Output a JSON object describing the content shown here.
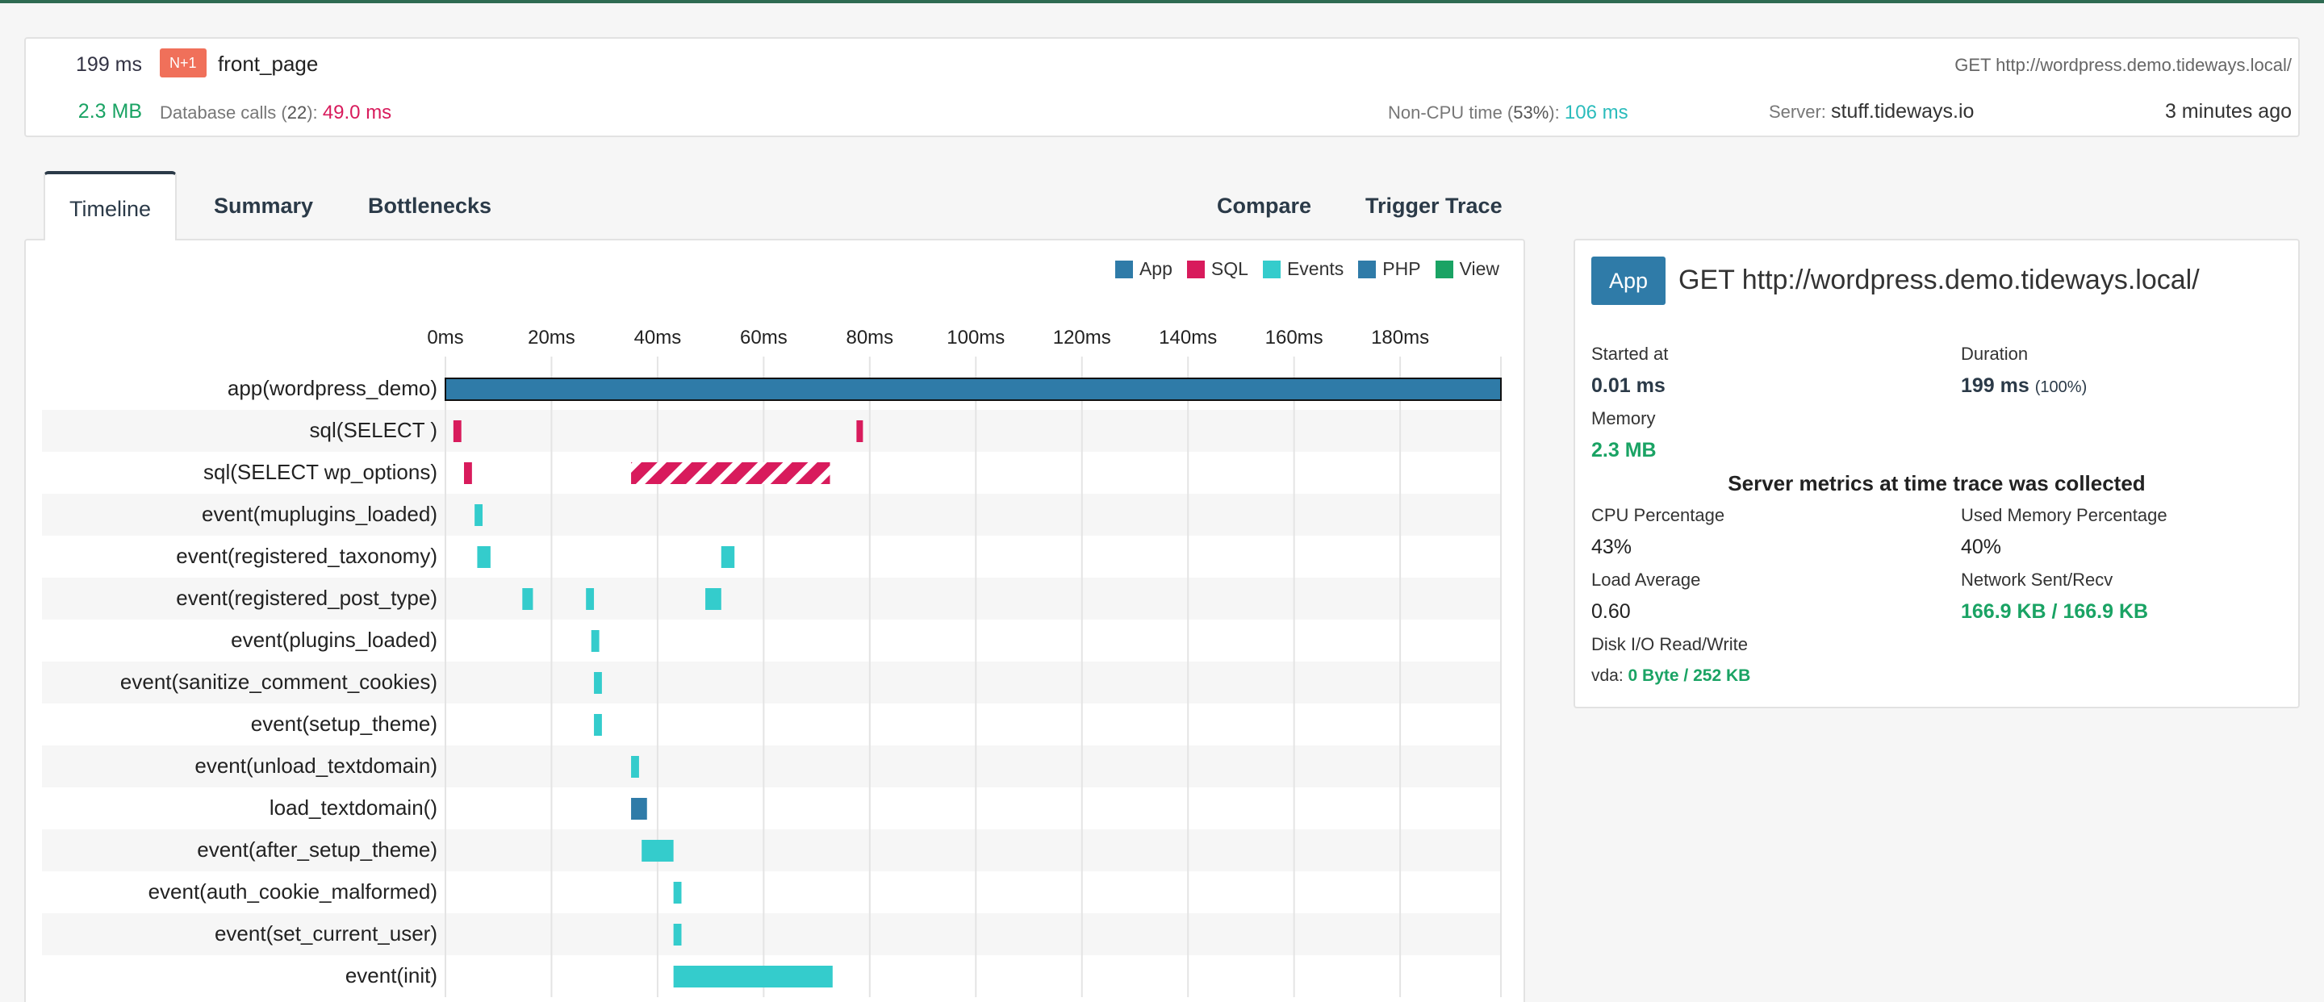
{
  "header": {
    "duration": "199 ms",
    "badge": "N+1",
    "name": "front_page",
    "url": "GET http://wordpress.demo.tideways.local/",
    "memory": "2.3 MB",
    "db_label": "Database calls (",
    "db_count": "22",
    "db_label_end": "):",
    "db_time": "49.0 ms",
    "noncpu_label": "Non-CPU time (",
    "noncpu_pct": "53%",
    "noncpu_label_end": "):",
    "noncpu_time": "106 ms",
    "server_label": "Server:",
    "server": "stuff.tideways.io",
    "ago": "3 minutes ago"
  },
  "tabs": {
    "timeline": "Timeline",
    "summary": "Summary",
    "bottlenecks": "Bottlenecks",
    "compare": "Compare",
    "trigger": "Trigger Trace"
  },
  "legend": [
    {
      "name": "App",
      "color": "#2f7ba8"
    },
    {
      "name": "SQL",
      "color": "#d81b5c"
    },
    {
      "name": "Events",
      "color": "#34cccc"
    },
    {
      "name": "PHP",
      "color": "#2f7ba8"
    },
    {
      "name": "View",
      "color": "#1aa364"
    }
  ],
  "timeline": {
    "ticks": [
      "0ms",
      "20ms",
      "40ms",
      "60ms",
      "80ms",
      "100ms",
      "120ms",
      "140ms",
      "160ms",
      "180ms"
    ],
    "tick_values": [
      0,
      20,
      40,
      60,
      80,
      100,
      120,
      140,
      160,
      180
    ],
    "max_ms": 199,
    "rows": [
      {
        "label": "app(wordpress_demo)",
        "type": "app",
        "spans": [
          [
            0,
            199
          ]
        ]
      },
      {
        "label": "sql(SELECT )",
        "type": "sql",
        "spans": [
          [
            1.5,
            3
          ],
          [
            77.5,
            78.5
          ]
        ]
      },
      {
        "label": "sql(SELECT wp_options)",
        "type": "sql-hatch",
        "spans": [
          [
            3.5,
            5
          ],
          [
            35,
            72.5
          ]
        ]
      },
      {
        "label": "event(muplugins_loaded)",
        "type": "events",
        "spans": [
          [
            5.5,
            7
          ]
        ]
      },
      {
        "label": "event(registered_taxonomy)",
        "type": "events",
        "spans": [
          [
            6,
            8.5
          ],
          [
            52,
            54.5
          ]
        ]
      },
      {
        "label": "event(registered_post_type)",
        "type": "events",
        "spans": [
          [
            14.5,
            16.5
          ],
          [
            26.5,
            28
          ],
          [
            49,
            52
          ]
        ]
      },
      {
        "label": "event(plugins_loaded)",
        "type": "events",
        "spans": [
          [
            27.5,
            29
          ]
        ]
      },
      {
        "label": "event(sanitize_comment_cookies)",
        "type": "events",
        "spans": [
          [
            28,
            29.5
          ]
        ]
      },
      {
        "label": "event(setup_theme)",
        "type": "events",
        "spans": [
          [
            28,
            29.5
          ]
        ]
      },
      {
        "label": "event(unload_textdomain)",
        "type": "events",
        "spans": [
          [
            35,
            36.5
          ]
        ]
      },
      {
        "label": "load_textdomain()",
        "type": "php",
        "spans": [
          [
            35,
            38
          ]
        ]
      },
      {
        "label": "event(after_setup_theme)",
        "type": "events",
        "spans": [
          [
            37,
            43
          ]
        ]
      },
      {
        "label": "event(auth_cookie_malformed)",
        "type": "events",
        "spans": [
          [
            43,
            44.5
          ]
        ]
      },
      {
        "label": "event(set_current_user)",
        "type": "events",
        "spans": [
          [
            43,
            44.5
          ]
        ]
      },
      {
        "label": "event(init)",
        "type": "events",
        "spans": [
          [
            43,
            73
          ]
        ]
      }
    ]
  },
  "info": {
    "badge": "App",
    "title": "GET http://wordpress.demo.tideways.local/",
    "started_label": "Started at",
    "started": "0.01 ms",
    "duration_label": "Duration",
    "duration": "199 ms",
    "duration_pct": "(100%)",
    "memory_label": "Memory",
    "memory": "2.3 MB",
    "metrics_title": "Server metrics at time trace was collected",
    "cpu_label": "CPU Percentage",
    "cpu": "43%",
    "mem_pct_label": "Used Memory Percentage",
    "mem_pct": "40%",
    "load_label": "Load Average",
    "load": "0.60",
    "net_label": "Network Sent/Recv",
    "net": "166.9 KB / 166.9 KB",
    "disk_label": "Disk I/O Read/Write",
    "disk_dev": "vda:",
    "disk": "0 Byte / 252 KB"
  }
}
